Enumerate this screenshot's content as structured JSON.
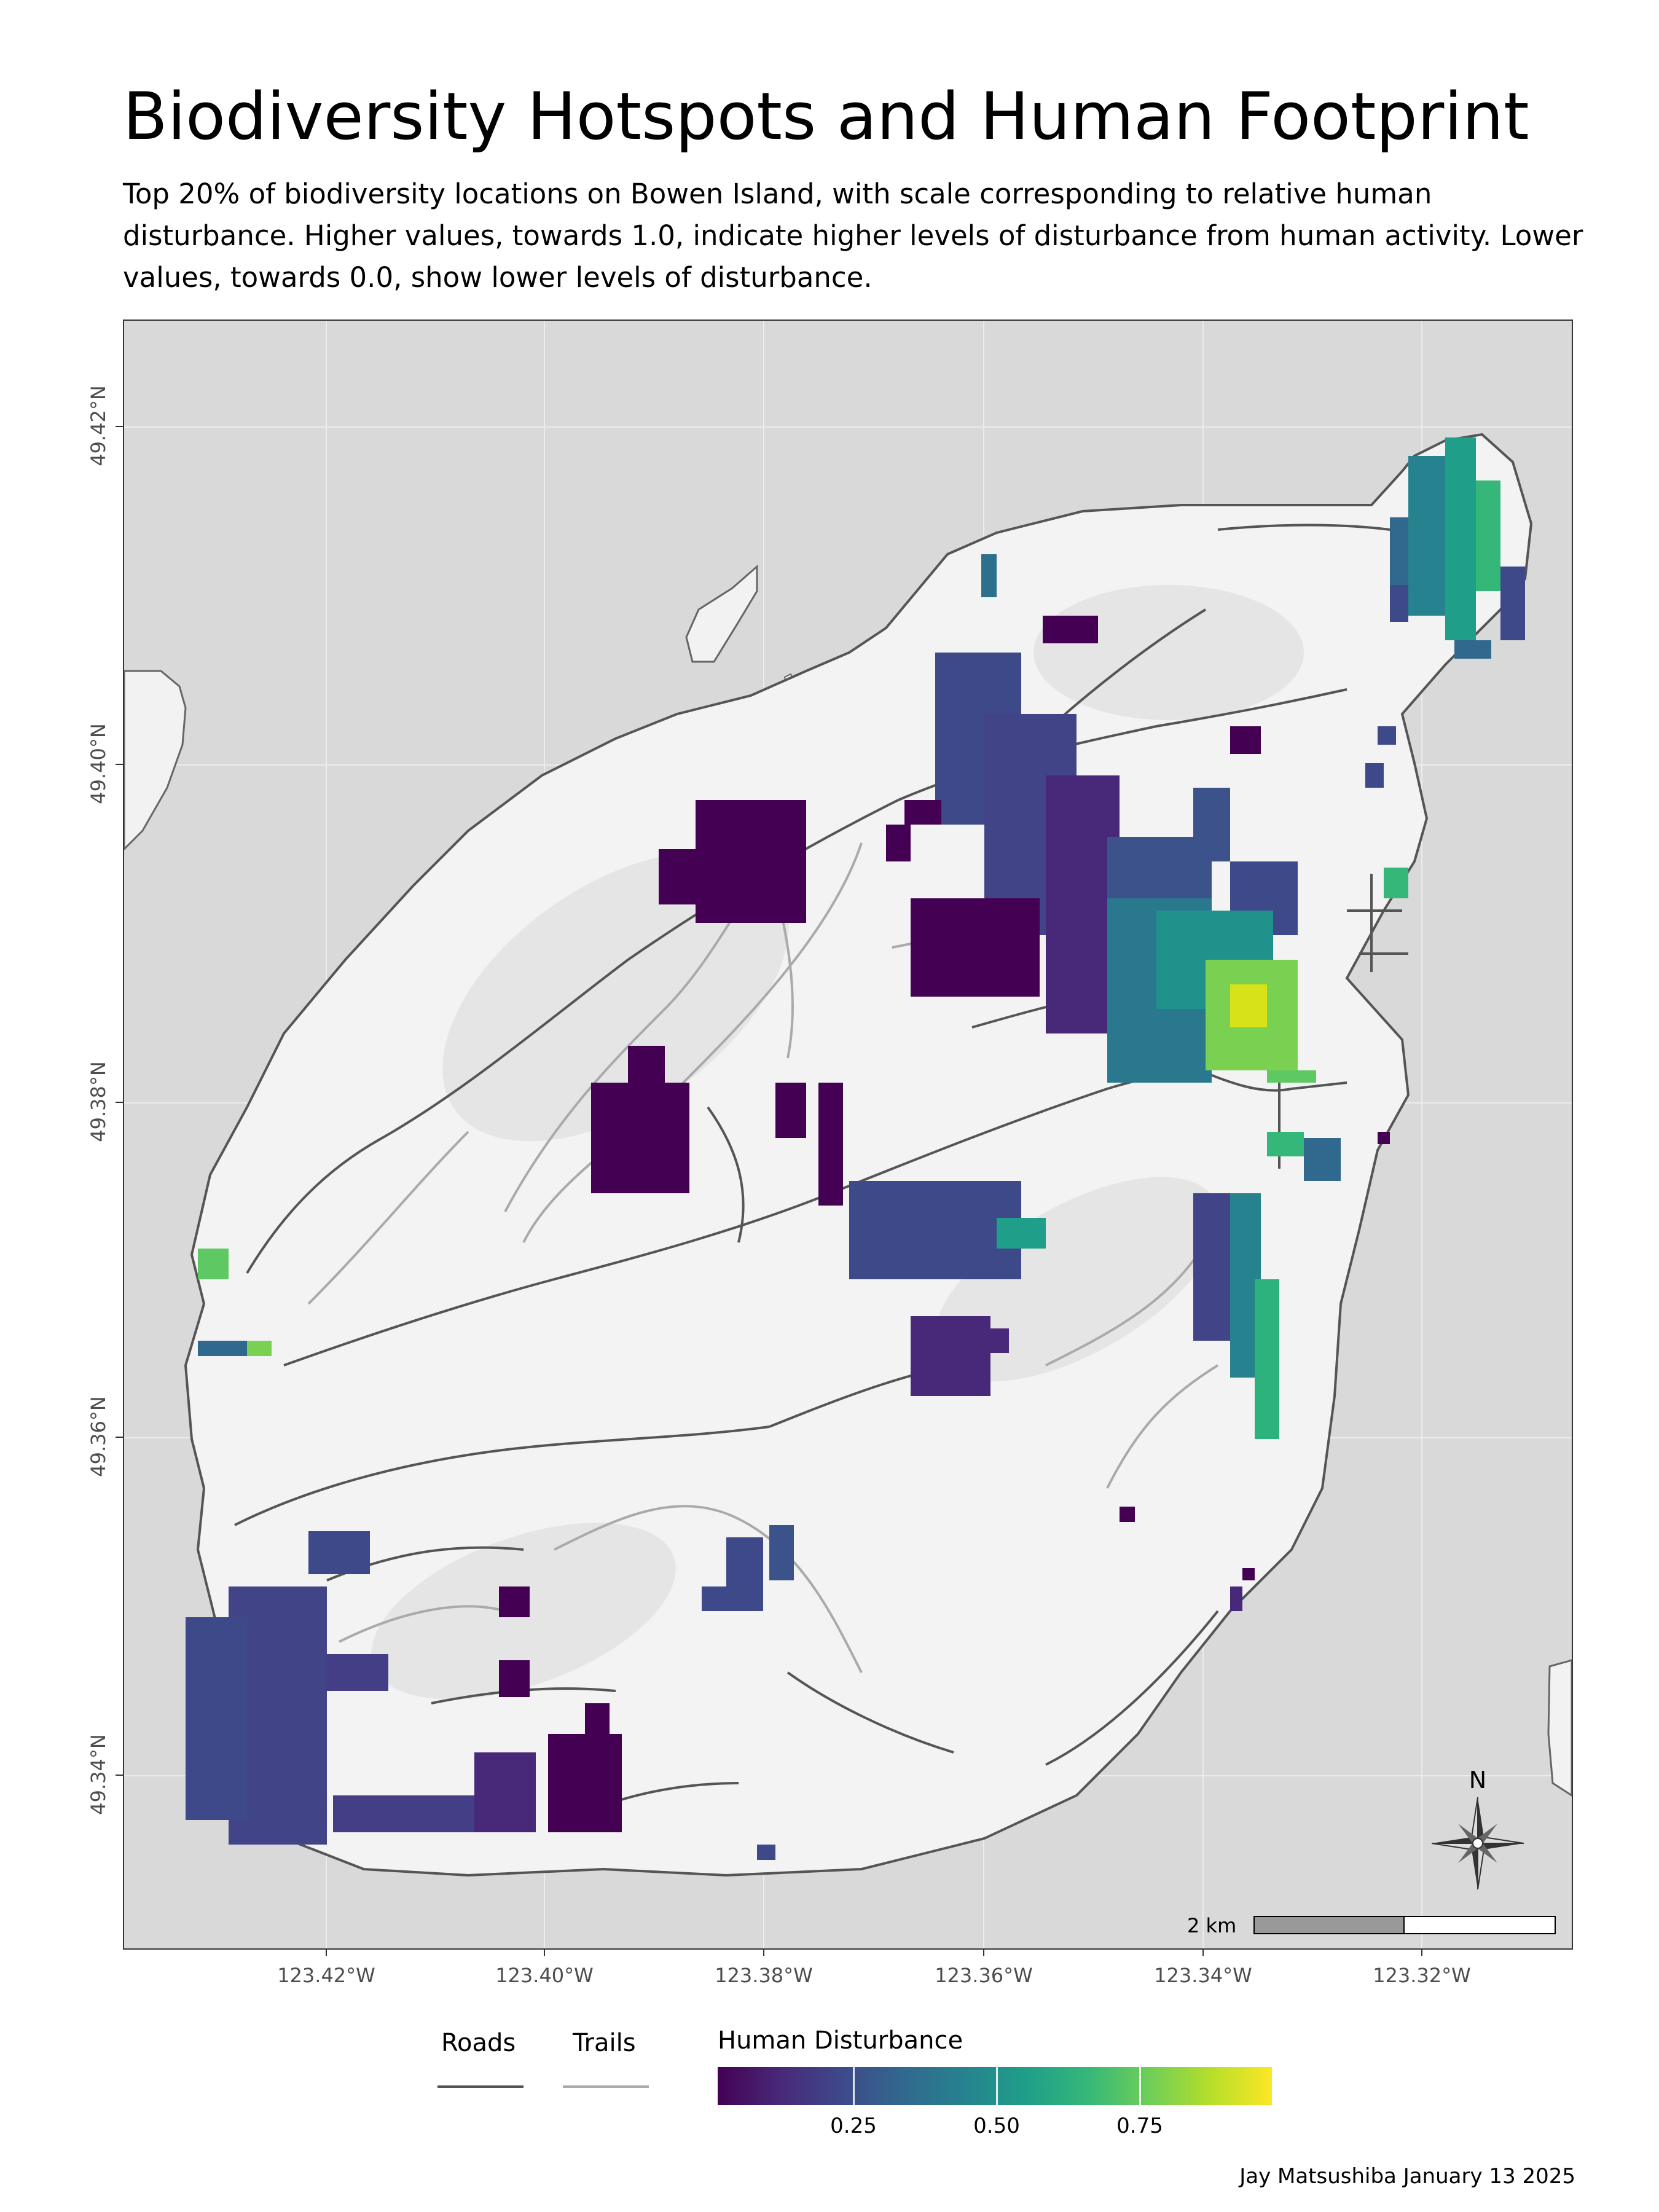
{
  "title": "Biodiversity Hotspots and Human Footprint",
  "subtitle": "Top 20% of biodiversity locations on Bowen Island, with scale corresponding to relative human disturbance. Higher values, towards 1.0, indicate higher levels of disturbance from human activity. Lower values, towards 0.0, show lower levels of disturbance.",
  "axes": {
    "y_ticks": [
      "49.42°N",
      "49.40°N",
      "49.38°N",
      "49.36°N",
      "49.34°N"
    ],
    "x_ticks": [
      "123.42°W",
      "123.40°W",
      "123.38°W",
      "123.36°W",
      "123.34°W",
      "123.32°W"
    ]
  },
  "scale_bar": {
    "label": "2 km"
  },
  "compass": {
    "label": "N",
    "icon": "compass-rose-icon"
  },
  "legend": {
    "roads_label": "Roads",
    "trails_label": "Trails",
    "road_color": "#555555",
    "trail_color": "#aaaaaa",
    "disturbance_title": "Human Disturbance",
    "disturbance_ticks": [
      "0.25",
      "0.50",
      "0.75"
    ],
    "colormap": "viridis"
  },
  "map_colors": {
    "water": "#d9d9d9",
    "land": "#f2f2f2",
    "coastline": "#555555"
  },
  "caption": "Jay Matsushiba January 13 2025"
}
